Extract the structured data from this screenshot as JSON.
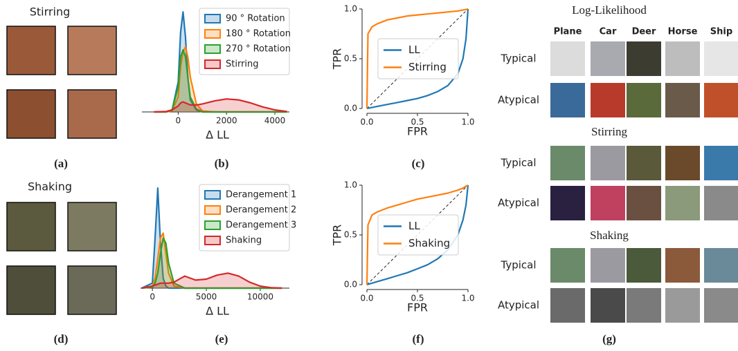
{
  "stirring_panel": {
    "title": "Stirring",
    "caption": "(a)"
  },
  "shaking_panel": {
    "title": "Shaking",
    "caption": "(d)"
  },
  "chart_data": [
    {
      "type": "density",
      "caption": "(b)",
      "xlabel": "Δ LL",
      "x": [
        -1000,
        -500,
        -250,
        0,
        100,
        200,
        300,
        400,
        500,
        750,
        1000,
        1500,
        2000,
        2500,
        3000,
        3500,
        4000,
        4500
      ],
      "series": [
        {
          "name": "90 ° Rotation",
          "color": "#1f77b4",
          "values": [
            0,
            0,
            0.02,
            0.3,
            0.8,
            1.0,
            0.75,
            0.35,
            0.12,
            0.02,
            0,
            0,
            0,
            0,
            0,
            0,
            0,
            0
          ]
        },
        {
          "name": "180 ° Rotation",
          "color": "#ff7f0e",
          "values": [
            0,
            0,
            0.01,
            0.15,
            0.45,
            0.6,
            0.65,
            0.55,
            0.35,
            0.08,
            0.01,
            0,
            0,
            0,
            0,
            0,
            0,
            0
          ]
        },
        {
          "name": "270 ° Rotation",
          "color": "#2ca02c",
          "values": [
            0,
            0,
            0.02,
            0.25,
            0.55,
            0.62,
            0.55,
            0.35,
            0.15,
            0.03,
            0,
            0,
            0,
            0,
            0,
            0,
            0,
            0
          ]
        },
        {
          "name": "Stirring",
          "color": "#d62728",
          "values": [
            0,
            0.005,
            0.02,
            0.06,
            0.09,
            0.1,
            0.09,
            0.08,
            0.07,
            0.07,
            0.08,
            0.11,
            0.13,
            0.12,
            0.09,
            0.05,
            0.02,
            0.005
          ]
        }
      ],
      "xlim": [
        -1500,
        4600
      ],
      "xticks": [
        0,
        2000,
        4000
      ],
      "ylim": [
        0,
        1.05
      ],
      "legend": "upper right"
    },
    {
      "type": "line",
      "caption": "(c)",
      "xlabel": "FPR",
      "ylabel": "TPR",
      "x": [
        0,
        0.01,
        0.05,
        0.1,
        0.2,
        0.3,
        0.4,
        0.5,
        0.6,
        0.7,
        0.8,
        0.9,
        0.95,
        0.98,
        1.0
      ],
      "series": [
        {
          "name": "LL",
          "color": "#1f77b4",
          "values": [
            0,
            0.002,
            0.01,
            0.02,
            0.04,
            0.06,
            0.08,
            0.1,
            0.13,
            0.17,
            0.23,
            0.35,
            0.5,
            0.7,
            1.0
          ]
        },
        {
          "name": "Stirring",
          "color": "#ff7f0e",
          "values": [
            0,
            0.75,
            0.82,
            0.85,
            0.89,
            0.91,
            0.93,
            0.94,
            0.95,
            0.96,
            0.97,
            0.98,
            0.99,
            0.995,
            1.0
          ]
        }
      ],
      "xlim": [
        0,
        1
      ],
      "xticks": [
        {
          "value": 0,
          "label": "0.0"
        },
        {
          "value": 0.5,
          "label": "0.5"
        },
        {
          "value": 1,
          "label": "1.0"
        }
      ],
      "ylim": [
        0,
        1
      ],
      "yticks": [
        {
          "value": 0,
          "label": "0.0"
        },
        {
          "value": 0.5,
          "label": "0.5"
        },
        {
          "value": 1,
          "label": "1.0"
        }
      ],
      "legend": "center right"
    },
    {
      "type": "density",
      "caption": "(e)",
      "xlabel": "Δ LL",
      "x": [
        -1000,
        0,
        250,
        500,
        750,
        1000,
        1250,
        1500,
        2000,
        3000,
        4000,
        5000,
        6000,
        7000,
        8000,
        9000,
        10000,
        11000,
        12000
      ],
      "series": [
        {
          "name": "Derangement 1",
          "color": "#1f77b4",
          "values": [
            0,
            0.05,
            0.5,
            1.0,
            0.45,
            0.1,
            0.02,
            0,
            0,
            0,
            0,
            0,
            0,
            0,
            0,
            0,
            0,
            0,
            0
          ]
        },
        {
          "name": "Derangement 2",
          "color": "#ff7f0e",
          "values": [
            0,
            0.02,
            0.1,
            0.3,
            0.5,
            0.55,
            0.35,
            0.15,
            0.02,
            0,
            0,
            0,
            0,
            0,
            0,
            0,
            0,
            0,
            0
          ]
        },
        {
          "name": "Derangement 3",
          "color": "#2ca02c",
          "values": [
            0,
            0.01,
            0.05,
            0.15,
            0.35,
            0.5,
            0.45,
            0.25,
            0.05,
            0,
            0,
            0,
            0,
            0,
            0,
            0,
            0,
            0,
            0
          ]
        },
        {
          "name": "Shaking",
          "color": "#d62728",
          "values": [
            0,
            0.02,
            0.03,
            0.04,
            0.05,
            0.05,
            0.05,
            0.05,
            0.06,
            0.12,
            0.08,
            0.09,
            0.13,
            0.15,
            0.12,
            0.06,
            0.02,
            0.005,
            0
          ]
        }
      ],
      "xlim": [
        -1100,
        12700
      ],
      "xticks": [
        0,
        5000,
        10000
      ],
      "ylim": [
        0,
        1.05
      ],
      "legend": "upper right"
    },
    {
      "type": "line",
      "caption": "(f)",
      "xlabel": "FPR",
      "ylabel": "TPR",
      "x": [
        0,
        0.01,
        0.05,
        0.1,
        0.2,
        0.3,
        0.4,
        0.5,
        0.6,
        0.7,
        0.8,
        0.9,
        0.95,
        0.98,
        1.0
      ],
      "series": [
        {
          "name": "LL",
          "color": "#1f77b4",
          "values": [
            0,
            0.003,
            0.015,
            0.03,
            0.06,
            0.09,
            0.12,
            0.16,
            0.2,
            0.26,
            0.35,
            0.5,
            0.65,
            0.8,
            1.0
          ]
        },
        {
          "name": "Shaking",
          "color": "#ff7f0e",
          "values": [
            0,
            0.6,
            0.7,
            0.73,
            0.77,
            0.8,
            0.83,
            0.86,
            0.88,
            0.9,
            0.92,
            0.95,
            0.97,
            0.99,
            1.0
          ]
        }
      ],
      "xlim": [
        0,
        1
      ],
      "xticks": [
        {
          "value": 0,
          "label": "0.0"
        },
        {
          "value": 0.5,
          "label": "0.5"
        },
        {
          "value": 1,
          "label": "1.0"
        }
      ],
      "ylim": [
        0,
        1
      ],
      "yticks": [
        {
          "value": 0,
          "label": "0.0"
        },
        {
          "value": 0.5,
          "label": "0.5"
        },
        {
          "value": 1,
          "label": "1.0"
        }
      ],
      "legend": "center right"
    }
  ],
  "sample_grid": {
    "columns": [
      "Plane",
      "Car",
      "Deer",
      "Horse",
      "Ship"
    ],
    "sections": [
      {
        "title": "Log-Likelihood",
        "rows": [
          "Typical",
          "Atypical"
        ]
      },
      {
        "title": "Stirring",
        "rows": [
          "Typical",
          "Atypical"
        ]
      },
      {
        "title": "Shaking",
        "rows": [
          "Typical",
          "Atypical"
        ]
      }
    ],
    "caption": "(g)"
  }
}
